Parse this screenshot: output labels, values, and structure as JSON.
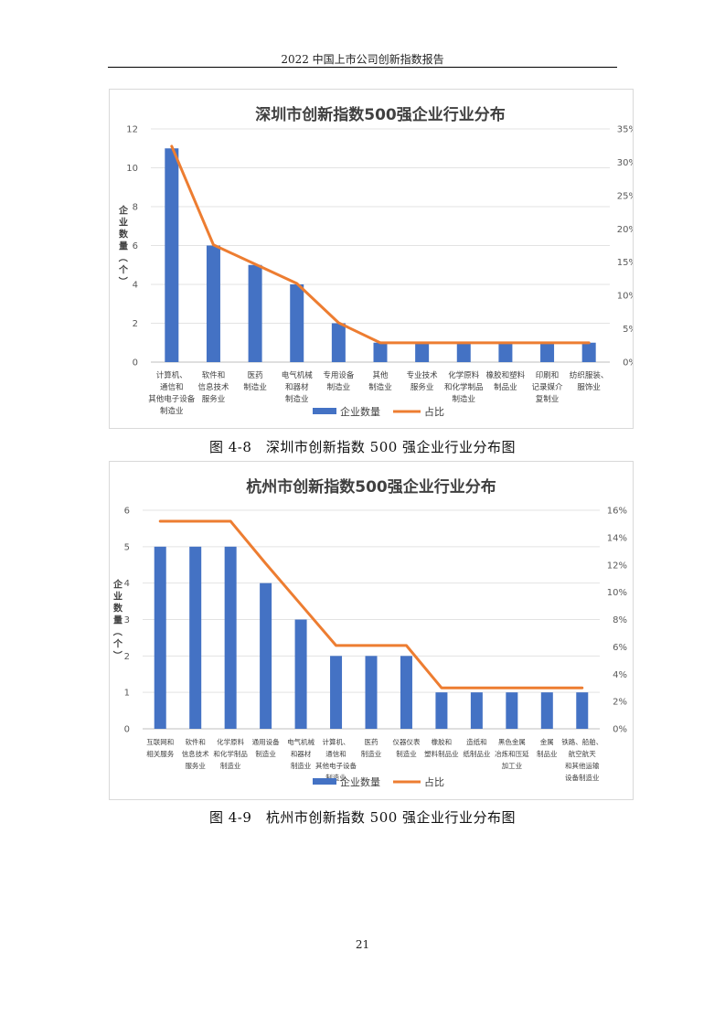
{
  "header": {
    "title": "2022 中国上市公司创新指数报告"
  },
  "captions": {
    "figure_1": "图 4-8　深圳市创新指数 500 强企业行业分布图",
    "figure_2": "图 4-9　杭州市创新指数 500 强企业行业分布图"
  },
  "page_number": "21",
  "colors": {
    "bar": "#4472c4",
    "line": "#ed7d31"
  },
  "chart_data": [
    {
      "type": "bar",
      "title": "深圳市创新指数500强企业行业分布",
      "ylabel": "企业数量（个）",
      "categories": [
        [
          "计算机、",
          "通信和",
          "其他电子设备",
          "制造业"
        ],
        [
          "软件和",
          "信息技术",
          "服务业"
        ],
        [
          "医药",
          "制造业"
        ],
        [
          "电气机械",
          "和器材",
          "制造业"
        ],
        [
          "专用设备",
          "制造业"
        ],
        [
          "其他",
          "制造业"
        ],
        [
          "专业技术",
          "服务业"
        ],
        [
          "化学原料",
          "和化学制品",
          "制造业"
        ],
        [
          "橡胶和塑料",
          "制品业"
        ],
        [
          "印刷和",
          "记录媒介",
          "复制业"
        ],
        [
          "纺织服装、",
          "服饰业"
        ]
      ],
      "y_ticks": [
        "0",
        "2",
        "4",
        "6",
        "8",
        "10",
        "12"
      ],
      "y2_ticks": [
        "0%",
        "5%",
        "10%",
        "15%",
        "20%",
        "25%",
        "30%",
        "35%"
      ],
      "ylim": [
        0,
        12
      ],
      "y2lim": [
        0,
        35
      ],
      "series": [
        {
          "name": "企业数量",
          "kind": "bar",
          "axis": "left",
          "values": [
            11,
            6,
            5,
            4,
            2,
            1,
            1,
            1,
            1,
            1,
            1
          ]
        },
        {
          "name": "占比",
          "kind": "line",
          "axis": "right",
          "values": [
            32.4,
            17.6,
            14.7,
            11.8,
            5.9,
            2.9,
            2.9,
            2.9,
            2.9,
            2.9,
            2.9
          ]
        }
      ],
      "legend_position": "bottom"
    },
    {
      "type": "bar",
      "title": "杭州市创新指数500强企业行业分布",
      "ylabel": "企业数量（个）",
      "categories": [
        [
          "互联网和",
          "相关服务"
        ],
        [
          "软件和",
          "信息技术",
          "服务业"
        ],
        [
          "化学原料",
          "和化学制品",
          "制造业"
        ],
        [
          "通用设备",
          "制造业"
        ],
        [
          "电气机械",
          "和器材",
          "制造业"
        ],
        [
          "计算机、",
          "通信和",
          "其他电子设备",
          "制造业"
        ],
        [
          "医药",
          "制造业"
        ],
        [
          "仪器仪表",
          "制造业"
        ],
        [
          "橡胶和",
          "塑料制品业"
        ],
        [
          "造纸和",
          "纸制品业"
        ],
        [
          "黑色金属",
          "冶炼和压延",
          "加工业"
        ],
        [
          "金属",
          "制品业"
        ],
        [
          "铁路、船舶、",
          "航空航天",
          "和其他运输",
          "设备制造业"
        ]
      ],
      "y_ticks": [
        "0",
        "1",
        "2",
        "3",
        "4",
        "5",
        "6"
      ],
      "y2_ticks": [
        "0%",
        "2%",
        "4%",
        "6%",
        "8%",
        "10%",
        "12%",
        "14%",
        "16%"
      ],
      "ylim": [
        0,
        6
      ],
      "y2lim": [
        0,
        16
      ],
      "series": [
        {
          "name": "企业数量",
          "kind": "bar",
          "axis": "left",
          "values": [
            5,
            5,
            5,
            4,
            3,
            2,
            2,
            2,
            1,
            1,
            1,
            1,
            1
          ]
        },
        {
          "name": "占比",
          "kind": "line",
          "axis": "right",
          "values": [
            15.2,
            15.2,
            15.2,
            12.1,
            9.1,
            6.1,
            6.1,
            6.1,
            3.0,
            3.0,
            3.0,
            3.0,
            3.0
          ]
        }
      ],
      "legend_position": "bottom"
    }
  ]
}
